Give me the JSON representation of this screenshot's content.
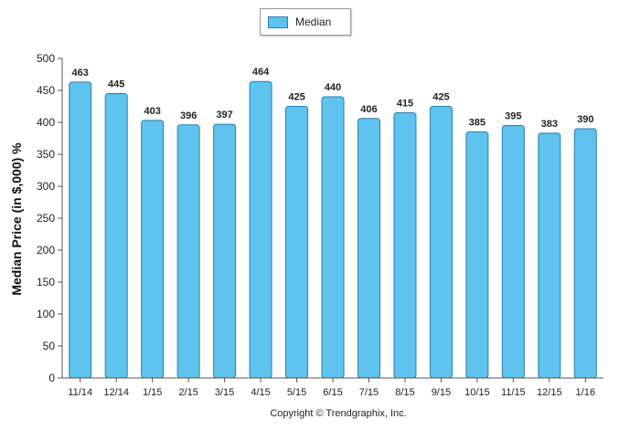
{
  "chart_data": {
    "type": "bar",
    "categories": [
      "11/14",
      "12/14",
      "1/15",
      "2/15",
      "3/15",
      "4/15",
      "5/15",
      "6/15",
      "7/15",
      "8/15",
      "9/15",
      "10/15",
      "11/15",
      "12/15",
      "1/16"
    ],
    "series": [
      {
        "name": "Median",
        "values": [
          463,
          445,
          403,
          396,
          397,
          464,
          425,
          440,
          406,
          415,
          425,
          385,
          395,
          383,
          390
        ]
      }
    ],
    "ylabel": "Median Price (in $,000) %",
    "ylim": [
      0,
      500
    ],
    "yticks": [
      0,
      50,
      100,
      150,
      200,
      250,
      300,
      350,
      400,
      450,
      500
    ],
    "legend": "top-center",
    "grid": false,
    "data_labels": true
  },
  "colors": {
    "bar_fill": "#5fc3f0",
    "bar_stroke": "#2a7ea8",
    "axis": "#555555"
  },
  "footer": {
    "copyright": "Copyright © Trendgraphix, Inc."
  }
}
